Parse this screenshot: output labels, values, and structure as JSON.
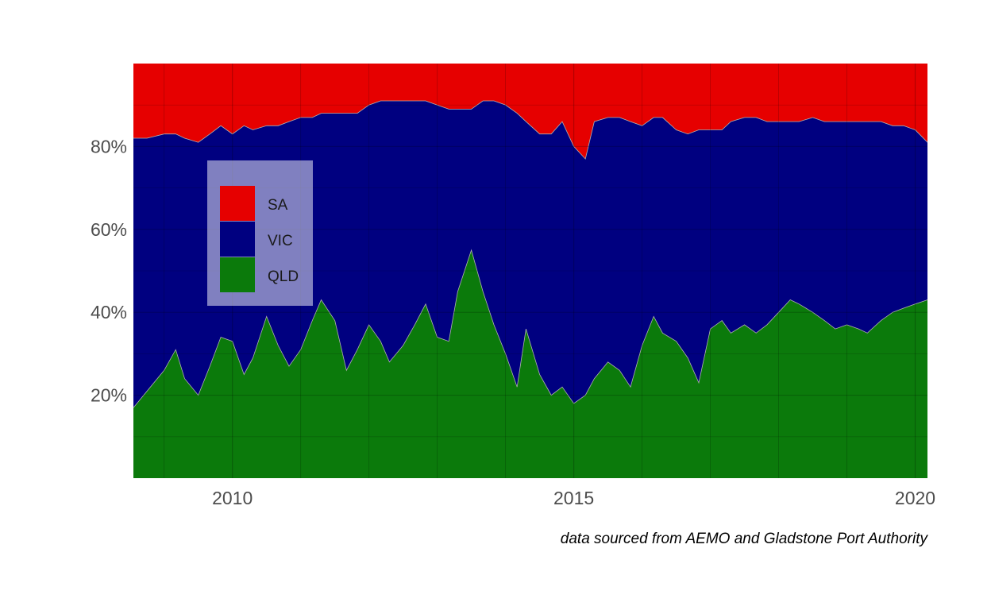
{
  "chart_data": {
    "type": "area",
    "stacked": true,
    "normalized": true,
    "xlim": [
      2008.55,
      2020.18
    ],
    "ylim": [
      0,
      100
    ],
    "x_ticks": [
      2010,
      2015,
      2020
    ],
    "x_tick_labels": [
      "2010",
      "2015",
      "2020"
    ],
    "y_ticks": [
      20,
      40,
      60,
      80
    ],
    "y_tick_labels": [
      "20%",
      "40%",
      "60%",
      "80%"
    ],
    "grid": true,
    "legend_position": "top-left",
    "caption": "data sourced from AEMO and Gladstone Port Authority",
    "series": [
      {
        "name": "SA",
        "color": "#e60000"
      },
      {
        "name": "VIC",
        "color": "#000080"
      },
      {
        "name": "QLD",
        "color": "#0b7a0b"
      }
    ],
    "x": [
      2008.55,
      2008.75,
      2009.0,
      2009.17,
      2009.3,
      2009.5,
      2009.67,
      2009.83,
      2010.0,
      2010.17,
      2010.3,
      2010.5,
      2010.67,
      2010.83,
      2011.0,
      2011.17,
      2011.3,
      2011.5,
      2011.67,
      2011.83,
      2012.0,
      2012.17,
      2012.3,
      2012.5,
      2012.67,
      2012.83,
      2013.0,
      2013.17,
      2013.3,
      2013.5,
      2013.67,
      2013.83,
      2014.0,
      2014.17,
      2014.3,
      2014.5,
      2014.67,
      2014.83,
      2015.0,
      2015.17,
      2015.3,
      2015.5,
      2015.67,
      2015.83,
      2016.0,
      2016.17,
      2016.3,
      2016.5,
      2016.67,
      2016.83,
      2017.0,
      2017.17,
      2017.3,
      2017.5,
      2017.67,
      2017.83,
      2018.0,
      2018.17,
      2018.3,
      2018.5,
      2018.67,
      2018.83,
      2019.0,
      2019.17,
      2019.3,
      2019.5,
      2019.67,
      2019.83,
      2020.0,
      2020.18
    ],
    "QLD": [
      17,
      21,
      26,
      31,
      24,
      20,
      27,
      34,
      33,
      25,
      29,
      39,
      32,
      27,
      31,
      38,
      43,
      38,
      26,
      31,
      37,
      33,
      28,
      32,
      37,
      42,
      34,
      33,
      45,
      55,
      45,
      37,
      30,
      22,
      36,
      25,
      20,
      22,
      18,
      20,
      24,
      28,
      26,
      22,
      32,
      39,
      35,
      33,
      29,
      23,
      36,
      38,
      35,
      37,
      35,
      37,
      40,
      43,
      42,
      40,
      38,
      36,
      37,
      36,
      35,
      38,
      40,
      41,
      42,
      43
    ],
    "VIC": [
      65,
      61,
      57,
      52,
      58,
      61,
      56,
      51,
      50,
      60,
      55,
      46,
      53,
      59,
      56,
      49,
      45,
      50,
      62,
      57,
      53,
      58,
      63,
      59,
      54,
      49,
      56,
      56,
      44,
      34,
      46,
      54,
      60,
      66,
      50,
      58,
      63,
      64,
      62,
      57,
      62,
      59,
      61,
      64,
      53,
      48,
      52,
      51,
      54,
      61,
      48,
      46,
      51,
      50,
      52,
      49,
      46,
      43,
      44,
      47,
      48,
      50,
      49,
      50,
      51,
      48,
      45,
      44,
      42,
      38
    ]
  }
}
